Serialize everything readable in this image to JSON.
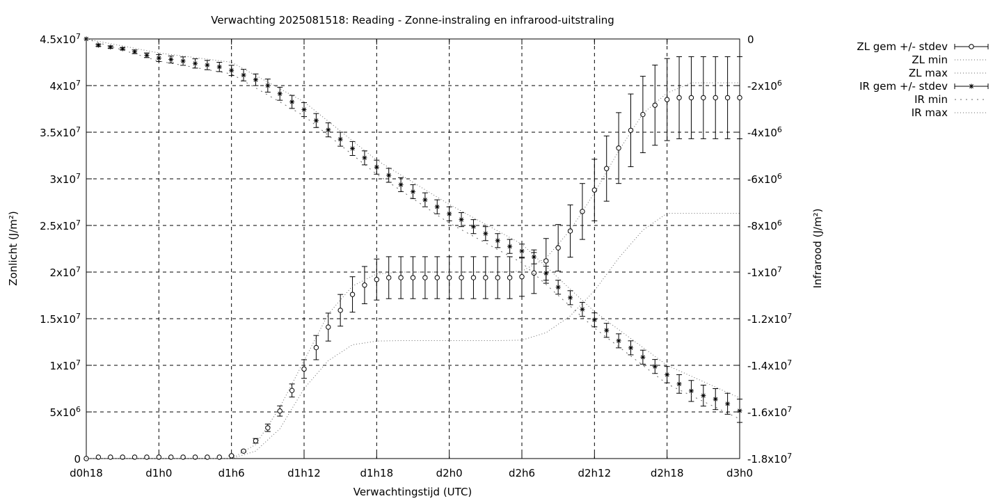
{
  "chart_data": {
    "type": "line",
    "title": "Verwachting 2025081518: Reading - Zonne-instraling en infrarood-uitstraling",
    "xlabel": "Verwachtingstijd (UTC)",
    "ylabel_left": "Zonlicht (J/m²)",
    "ylabel_right": "Infrarood (J/m²)",
    "x_unit": "hours since d0h18",
    "xlim": [
      0,
      54
    ],
    "ylim_left": [
      0,
      45000000
    ],
    "ylim_right": [
      -18000000,
      0
    ],
    "grid": true,
    "legend_position": "top-right outside",
    "x_ticks": [
      {
        "x": 0,
        "label": "d0h18"
      },
      {
        "x": 6,
        "label": "d1h0"
      },
      {
        "x": 12,
        "label": "d1h6"
      },
      {
        "x": 18,
        "label": "d1h12"
      },
      {
        "x": 24,
        "label": "d1h18"
      },
      {
        "x": 30,
        "label": "d2h0"
      },
      {
        "x": 36,
        "label": "d2h6"
      },
      {
        "x": 42,
        "label": "d2h12"
      },
      {
        "x": 48,
        "label": "d2h18"
      },
      {
        "x": 54,
        "label": "d3h0"
      }
    ],
    "y_ticks_left": [
      {
        "v": 0,
        "m": "0",
        "e": ""
      },
      {
        "v": 5000000,
        "m": "5x10",
        "e": "6"
      },
      {
        "v": 10000000,
        "m": "1x10",
        "e": "7"
      },
      {
        "v": 15000000,
        "m": "1.5x10",
        "e": "7"
      },
      {
        "v": 20000000,
        "m": "2x10",
        "e": "7"
      },
      {
        "v": 25000000,
        "m": "2.5x10",
        "e": "7"
      },
      {
        "v": 30000000,
        "m": "3x10",
        "e": "7"
      },
      {
        "v": 35000000,
        "m": "3.5x10",
        "e": "7"
      },
      {
        "v": 40000000,
        "m": "4x10",
        "e": "7"
      },
      {
        "v": 45000000,
        "m": "4.5x10",
        "e": "7"
      }
    ],
    "y_ticks_right": [
      {
        "v": 0,
        "m": "0",
        "e": ""
      },
      {
        "v": -2000000,
        "m": "-2x10",
        "e": "6"
      },
      {
        "v": -4000000,
        "m": "-4x10",
        "e": "6"
      },
      {
        "v": -6000000,
        "m": "-6x10",
        "e": "6"
      },
      {
        "v": -8000000,
        "m": "-8x10",
        "e": "6"
      },
      {
        "v": -10000000,
        "m": "-1x10",
        "e": "7"
      },
      {
        "v": -12000000,
        "m": "-1.2x10",
        "e": "7"
      },
      {
        "v": -14000000,
        "m": "-1.4x10",
        "e": "7"
      },
      {
        "v": -16000000,
        "m": "-1.6x10",
        "e": "7"
      },
      {
        "v": -18000000,
        "m": "-1.8x10",
        "e": "7"
      }
    ],
    "series": [
      {
        "name": "ZL gem +/- stdev",
        "axis": "left",
        "marker": "open-circle",
        "x": [
          0,
          1,
          2,
          3,
          4,
          5,
          6,
          7,
          8,
          9,
          10,
          11,
          12,
          13,
          14,
          15,
          16,
          17,
          18,
          19,
          20,
          21,
          22,
          23,
          24,
          25,
          26,
          27,
          28,
          29,
          30,
          31,
          32,
          33,
          34,
          35,
          36,
          37,
          38,
          39,
          40,
          41,
          42,
          43,
          44,
          45,
          46,
          47,
          48,
          49,
          50,
          51,
          52,
          53,
          54
        ],
        "mean": [
          0,
          0.15,
          0.15,
          0.15,
          0.15,
          0.15,
          0.15,
          0.15,
          0.15,
          0.15,
          0.15,
          0.15,
          0.3,
          0.8,
          1.9,
          3.3,
          5.1,
          7.3,
          9.6,
          11.9,
          14.1,
          15.9,
          17.6,
          18.6,
          19.2,
          19.4,
          19.4,
          19.4,
          19.4,
          19.4,
          19.4,
          19.4,
          19.4,
          19.4,
          19.4,
          19.4,
          19.5,
          19.9,
          21.2,
          22.6,
          24.4,
          26.5,
          28.8,
          31.1,
          33.3,
          35.2,
          36.9,
          37.9,
          38.5,
          38.7,
          38.7,
          38.7,
          38.7,
          38.7,
          38.7
        ],
        "stdev": [
          0,
          0,
          0,
          0,
          0,
          0,
          0,
          0,
          0,
          0,
          0,
          0,
          0.05,
          0.1,
          0.25,
          0.4,
          0.55,
          0.7,
          1.0,
          1.3,
          1.5,
          1.7,
          1.9,
          2.0,
          2.2,
          2.25,
          2.25,
          2.25,
          2.25,
          2.25,
          2.25,
          2.25,
          2.25,
          2.25,
          2.25,
          2.25,
          2.1,
          2.2,
          2.4,
          2.5,
          2.8,
          3.0,
          3.3,
          3.5,
          3.8,
          3.9,
          4.1,
          4.3,
          4.4,
          4.4,
          4.4,
          4.4,
          4.4,
          4.4,
          4.4
        ],
        "unit_scale": 1000000
      },
      {
        "name": "ZL min",
        "axis": "left",
        "x": [
          0,
          6,
          12,
          14,
          16,
          18,
          20,
          22,
          24,
          26,
          28,
          30,
          32,
          34,
          36,
          38,
          40,
          42,
          44,
          46,
          48,
          50,
          52,
          54
        ],
        "values": [
          0,
          0,
          0,
          0.8,
          3.2,
          7.5,
          10.5,
          12.2,
          12.6,
          12.65,
          12.65,
          12.65,
          12.65,
          12.65,
          12.7,
          13.5,
          15.3,
          18.0,
          21.5,
          24.5,
          26.3,
          26.3,
          26.3,
          26.3
        ],
        "unit_scale": 1000000
      },
      {
        "name": "ZL max",
        "axis": "left",
        "x": [
          0,
          6,
          12,
          14,
          16,
          18,
          20,
          22,
          24,
          26,
          28,
          30,
          32,
          34,
          36,
          38,
          40,
          42,
          44,
          46,
          48,
          50,
          52,
          54
        ],
        "values": [
          0,
          0,
          0,
          1.5,
          5.5,
          10.5,
          15.5,
          18.5,
          19.8,
          20.0,
          20.0,
          20.0,
          20.0,
          20.0,
          20.1,
          21.5,
          24.5,
          28.5,
          33.0,
          37.0,
          39.2,
          40.3,
          40.3,
          40.3
        ],
        "unit_scale": 1000000
      },
      {
        "name": "IR gem +/- stdev",
        "axis": "right",
        "marker": "star",
        "x": [
          0,
          1,
          2,
          3,
          4,
          5,
          6,
          7,
          8,
          9,
          10,
          11,
          12,
          13,
          14,
          15,
          16,
          17,
          18,
          19,
          20,
          21,
          22,
          23,
          24,
          25,
          26,
          27,
          28,
          29,
          30,
          31,
          32,
          33,
          34,
          35,
          36,
          37,
          38,
          39,
          40,
          41,
          42,
          43,
          44,
          45,
          46,
          47,
          48,
          49,
          50,
          51,
          52,
          53,
          54
        ],
        "mean": [
          0,
          -0.27,
          -0.35,
          -0.42,
          -0.55,
          -0.7,
          -0.82,
          -0.88,
          -0.95,
          -1.05,
          -1.12,
          -1.2,
          -1.35,
          -1.55,
          -1.75,
          -2.0,
          -2.35,
          -2.7,
          -3.03,
          -3.5,
          -3.9,
          -4.3,
          -4.7,
          -5.1,
          -5.5,
          -5.85,
          -6.25,
          -6.55,
          -6.9,
          -7.2,
          -7.5,
          -7.75,
          -8.05,
          -8.35,
          -8.65,
          -8.9,
          -9.1,
          -9.35,
          -10.05,
          -10.65,
          -11.1,
          -11.6,
          -12.05,
          -12.5,
          -12.95,
          -13.25,
          -13.65,
          -14.05,
          -14.4,
          -14.8,
          -15.1,
          -15.3,
          -15.45,
          -15.65,
          -15.95
        ],
        "stdev": [
          0,
          0.05,
          0.05,
          0.05,
          0.08,
          0.1,
          0.15,
          0.15,
          0.18,
          0.2,
          0.2,
          0.2,
          0.22,
          0.25,
          0.25,
          0.28,
          0.28,
          0.28,
          0.3,
          0.3,
          0.3,
          0.3,
          0.3,
          0.3,
          0.3,
          0.3,
          0.3,
          0.3,
          0.3,
          0.3,
          0.3,
          0.3,
          0.3,
          0.3,
          0.3,
          0.3,
          0.3,
          0.3,
          0.3,
          0.3,
          0.3,
          0.3,
          0.3,
          0.3,
          0.3,
          0.3,
          0.3,
          0.3,
          0.35,
          0.4,
          0.45,
          0.45,
          0.45,
          0.45,
          0.5
        ],
        "unit_scale": 1000000
      },
      {
        "name": "IR min",
        "axis": "right",
        "x": [
          0,
          6,
          12,
          18,
          24,
          30,
          36,
          42,
          48,
          54
        ],
        "values": [
          0,
          -0.95,
          -1.5,
          -3.3,
          -5.8,
          -7.9,
          -9.6,
          -12.4,
          -14.8,
          -16.3
        ],
        "unit_scale": 1000000
      },
      {
        "name": "IR max",
        "axis": "right",
        "x": [
          0,
          6,
          12,
          18,
          24,
          30,
          36,
          42,
          48,
          54
        ],
        "values": [
          0,
          -0.6,
          -1.0,
          -2.7,
          -5.2,
          -7.1,
          -8.8,
          -11.7,
          -14.0,
          -15.4
        ],
        "unit_scale": 1000000
      }
    ]
  }
}
